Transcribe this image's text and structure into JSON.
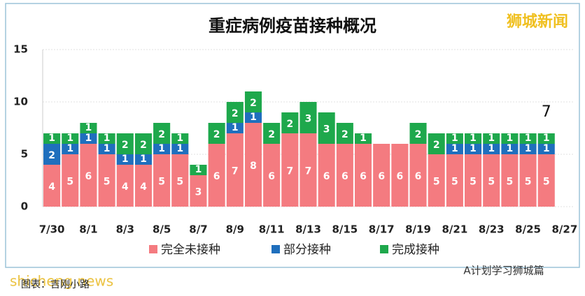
{
  "chart_data": {
    "type": "stacked_bar",
    "title": "重症病例疫苗接种概况",
    "categories": [
      "7/30",
      null,
      "8/1",
      null,
      "8/3",
      null,
      "8/5",
      null,
      "8/7",
      null,
      "8/9",
      null,
      "8/11",
      null,
      "8/13",
      null,
      "8/15",
      null,
      "8/17",
      null,
      "8/19",
      null,
      "8/21",
      null,
      "8/23",
      null,
      "8/25",
      null,
      "8/27"
    ],
    "series": [
      {
        "name": "完全未接种",
        "color": "#f47b80",
        "values": [
          4,
          5,
          6,
          5,
          4,
          4,
          5,
          5,
          3,
          6,
          7,
          8,
          6,
          7,
          7,
          6,
          6,
          6,
          6,
          6,
          6,
          5,
          5,
          5,
          5,
          5,
          5,
          5,
          null
        ]
      },
      {
        "name": "部分接种",
        "color": "#1f6fbd",
        "values": [
          2,
          1,
          1,
          1,
          1,
          1,
          1,
          1,
          0,
          0,
          1,
          1,
          0,
          0,
          0,
          0,
          0,
          0,
          0,
          0,
          0,
          0,
          1,
          1,
          1,
          1,
          1,
          1,
          null
        ]
      },
      {
        "name": "完成接种",
        "color": "#1ea84c",
        "values": [
          1,
          1,
          1,
          1,
          2,
          2,
          2,
          1,
          1,
          2,
          2,
          2,
          2,
          2,
          3,
          3,
          2,
          1,
          0,
          0,
          2,
          2,
          1,
          1,
          1,
          1,
          1,
          1,
          null
        ]
      }
    ],
    "annotation": "7",
    "ylim": [
      0,
      15
    ],
    "yticks": [
      0,
      5,
      10,
      15
    ],
    "grid": true,
    "legend": "bottom",
    "watermarks": [
      "狮城新闻",
      "shicheng.news",
      "图表：吉刚小路",
      "A计划学习狮城篇"
    ]
  }
}
